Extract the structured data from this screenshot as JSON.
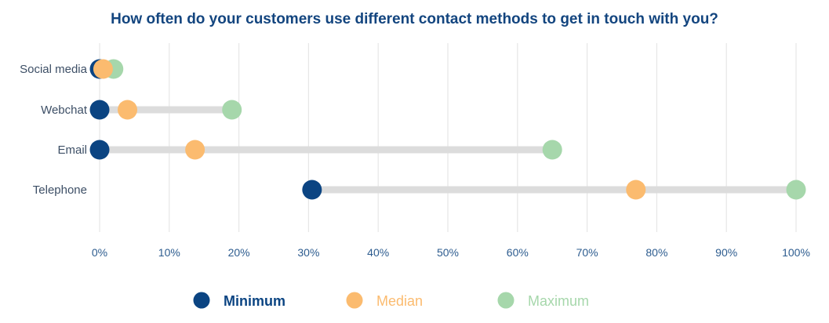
{
  "chart_data": {
    "type": "dumbbell",
    "title": "How often do your customers use different contact methods to get in touch with you?",
    "categories": [
      "Social media",
      "Webchat",
      "Email",
      "Telephone"
    ],
    "series": [
      {
        "name": "Minimum",
        "color": "#0b4482",
        "values": [
          0,
          0,
          0,
          30.5
        ]
      },
      {
        "name": "Median",
        "color": "#fbbb6f",
        "values": [
          0.5,
          4,
          13.7,
          77
        ]
      },
      {
        "name": "Maximum",
        "color": "#a6d7ab",
        "values": [
          2,
          19,
          65,
          100
        ]
      }
    ],
    "x_ticks": [
      0,
      10,
      20,
      30,
      40,
      50,
      60,
      70,
      80,
      90,
      100
    ],
    "x_tick_labels": [
      "0%",
      "10%",
      "20%",
      "30%",
      "40%",
      "50%",
      "60%",
      "70%",
      "80%",
      "90%",
      "100%"
    ],
    "xlim": [
      0,
      100
    ],
    "grid": true,
    "legend_position": "bottom",
    "range_bar_color": "#dcdcdc",
    "gridline_color": "#e6e6e6"
  }
}
